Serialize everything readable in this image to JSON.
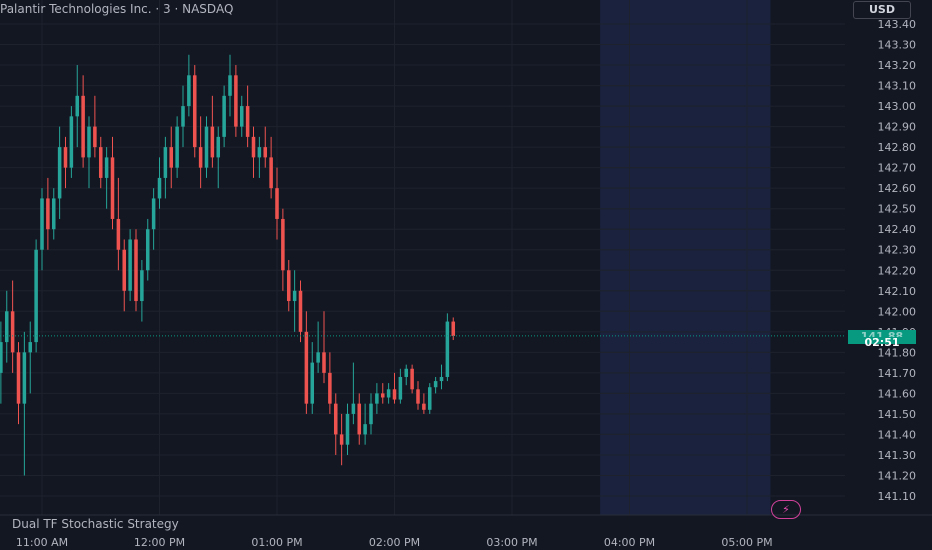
{
  "header": {
    "symbol_title": "Palantir Technologies Inc. · 3 · NASDAQ"
  },
  "currency_button": "USD",
  "indicator_label": "Dual TF Stochastic Strategy",
  "last_price_tag": {
    "price": "141.88",
    "countdown": "02:51"
  },
  "icons": {
    "alert": "lightning-icon"
  },
  "colors": {
    "background": "#131722",
    "up": "#26a69a",
    "down": "#ef5350",
    "grid": "#1e222d",
    "session_highlight": "#1c2440",
    "price_tag": "#089981",
    "text": "#b2b5be"
  },
  "chart_data": {
    "type": "candlestick",
    "ylim": [
      141.05,
      143.45
    ],
    "y_ticks": [
      "141.10",
      "141.20",
      "141.30",
      "141.40",
      "141.50",
      "141.60",
      "141.70",
      "141.80",
      "141.90",
      "142.00",
      "142.10",
      "142.20",
      "142.30",
      "142.40",
      "142.50",
      "142.60",
      "142.70",
      "142.80",
      "142.90",
      "143.00",
      "143.10",
      "143.20",
      "143.30",
      "143.40"
    ],
    "x_ticks": [
      "11:00 AM",
      "12:00 PM",
      "01:00 PM",
      "02:00 PM",
      "03:00 PM",
      "04:00 PM",
      "05:00 PM"
    ],
    "x_tick_minutes": [
      0,
      60,
      120,
      180,
      240,
      300,
      360
    ],
    "bar_interval_minutes": 3,
    "first_bar_minutes": -30,
    "extended_session_start_minutes": 285,
    "extended_session_end_minutes": 372,
    "last_price": 141.88,
    "grid": true,
    "candles": [
      [
        142.25,
        142.45,
        141.75,
        142.05
      ],
      [
        142.05,
        142.35,
        141.7,
        141.85
      ],
      [
        141.85,
        142.0,
        141.6,
        141.7
      ],
      [
        141.7,
        141.95,
        141.55,
        141.85
      ],
      [
        141.85,
        142.1,
        141.75,
        142.0
      ],
      [
        142.0,
        142.15,
        141.7,
        141.8
      ],
      [
        141.8,
        141.85,
        141.45,
        141.55
      ],
      [
        141.55,
        141.9,
        141.2,
        141.8
      ],
      [
        141.8,
        141.95,
        141.6,
        141.85
      ],
      [
        141.85,
        142.35,
        141.8,
        142.3
      ],
      [
        142.3,
        142.6,
        142.2,
        142.55
      ],
      [
        142.55,
        142.65,
        142.3,
        142.4
      ],
      [
        142.4,
        142.6,
        142.35,
        142.55
      ],
      [
        142.55,
        142.9,
        142.45,
        142.8
      ],
      [
        142.8,
        142.85,
        142.6,
        142.7
      ],
      [
        142.7,
        143.0,
        142.65,
        142.95
      ],
      [
        142.95,
        143.2,
        142.8,
        143.05
      ],
      [
        143.05,
        143.15,
        142.7,
        142.75
      ],
      [
        142.75,
        142.95,
        142.6,
        142.9
      ],
      [
        142.9,
        143.05,
        142.75,
        142.8
      ],
      [
        142.8,
        142.85,
        142.6,
        142.65
      ],
      [
        142.65,
        142.8,
        142.5,
        142.75
      ],
      [
        142.75,
        142.85,
        142.4,
        142.45
      ],
      [
        142.45,
        142.65,
        142.2,
        142.3
      ],
      [
        142.3,
        142.35,
        142.0,
        142.1
      ],
      [
        142.1,
        142.4,
        142.05,
        142.35
      ],
      [
        142.35,
        142.4,
        142.0,
        142.05
      ],
      [
        142.05,
        142.25,
        141.95,
        142.2
      ],
      [
        142.2,
        142.45,
        142.15,
        142.4
      ],
      [
        142.4,
        142.6,
        142.3,
        142.55
      ],
      [
        142.55,
        142.75,
        142.5,
        142.65
      ],
      [
        142.65,
        142.85,
        142.55,
        142.8
      ],
      [
        142.8,
        142.9,
        142.6,
        142.7
      ],
      [
        142.7,
        142.95,
        142.65,
        142.9
      ],
      [
        142.9,
        143.1,
        142.8,
        143.0
      ],
      [
        143.0,
        143.25,
        142.95,
        143.15
      ],
      [
        143.15,
        143.2,
        142.75,
        142.8
      ],
      [
        142.8,
        142.95,
        142.6,
        142.7
      ],
      [
        142.7,
        142.95,
        142.65,
        142.9
      ],
      [
        142.9,
        143.05,
        142.7,
        142.75
      ],
      [
        142.75,
        142.9,
        142.6,
        142.85
      ],
      [
        142.85,
        143.1,
        142.8,
        143.05
      ],
      [
        143.05,
        143.25,
        142.95,
        143.15
      ],
      [
        143.15,
        143.2,
        142.85,
        142.9
      ],
      [
        142.9,
        143.05,
        142.85,
        143.0
      ],
      [
        143.0,
        143.1,
        142.8,
        142.85
      ],
      [
        142.85,
        142.9,
        142.65,
        142.75
      ],
      [
        142.75,
        142.85,
        142.65,
        142.8
      ],
      [
        142.8,
        142.9,
        142.7,
        142.75
      ],
      [
        142.75,
        142.85,
        142.55,
        142.6
      ],
      [
        142.6,
        142.7,
        142.35,
        142.45
      ],
      [
        142.45,
        142.5,
        142.1,
        142.2
      ],
      [
        142.2,
        142.25,
        142.0,
        142.05
      ],
      [
        142.05,
        142.2,
        141.9,
        142.1
      ],
      [
        142.1,
        142.15,
        141.85,
        141.9
      ],
      [
        141.9,
        142.0,
        141.5,
        141.55
      ],
      [
        141.55,
        141.85,
        141.5,
        141.75
      ],
      [
        141.75,
        141.95,
        141.7,
        141.8
      ],
      [
        141.8,
        142.0,
        141.65,
        141.7
      ],
      [
        141.7,
        141.8,
        141.5,
        141.55
      ],
      [
        141.55,
        141.6,
        141.3,
        141.4
      ],
      [
        141.4,
        141.5,
        141.25,
        141.35
      ],
      [
        141.35,
        141.55,
        141.3,
        141.5
      ],
      [
        141.5,
        141.75,
        141.45,
        141.55
      ],
      [
        141.55,
        141.6,
        141.35,
        141.4
      ],
      [
        141.4,
        141.55,
        141.35,
        141.45
      ],
      [
        141.45,
        141.6,
        141.4,
        141.55
      ],
      [
        141.55,
        141.65,
        141.5,
        141.6
      ],
      [
        141.6,
        141.65,
        141.55,
        141.58
      ],
      [
        141.58,
        141.65,
        141.55,
        141.62
      ],
      [
        141.62,
        141.7,
        141.55,
        141.57
      ],
      [
        141.57,
        141.72,
        141.55,
        141.68
      ],
      [
        141.68,
        141.74,
        141.64,
        141.72
      ],
      [
        141.72,
        141.74,
        141.6,
        141.62
      ],
      [
        141.62,
        141.66,
        141.52,
        141.55
      ],
      [
        141.55,
        141.6,
        141.5,
        141.52
      ],
      [
        141.52,
        141.65,
        141.5,
        141.63
      ],
      [
        141.63,
        141.68,
        141.6,
        141.66
      ],
      [
        141.66,
        141.74,
        141.62,
        141.68
      ],
      [
        141.68,
        141.99,
        141.66,
        141.95
      ],
      [
        141.95,
        141.97,
        141.86,
        141.88
      ]
    ]
  }
}
